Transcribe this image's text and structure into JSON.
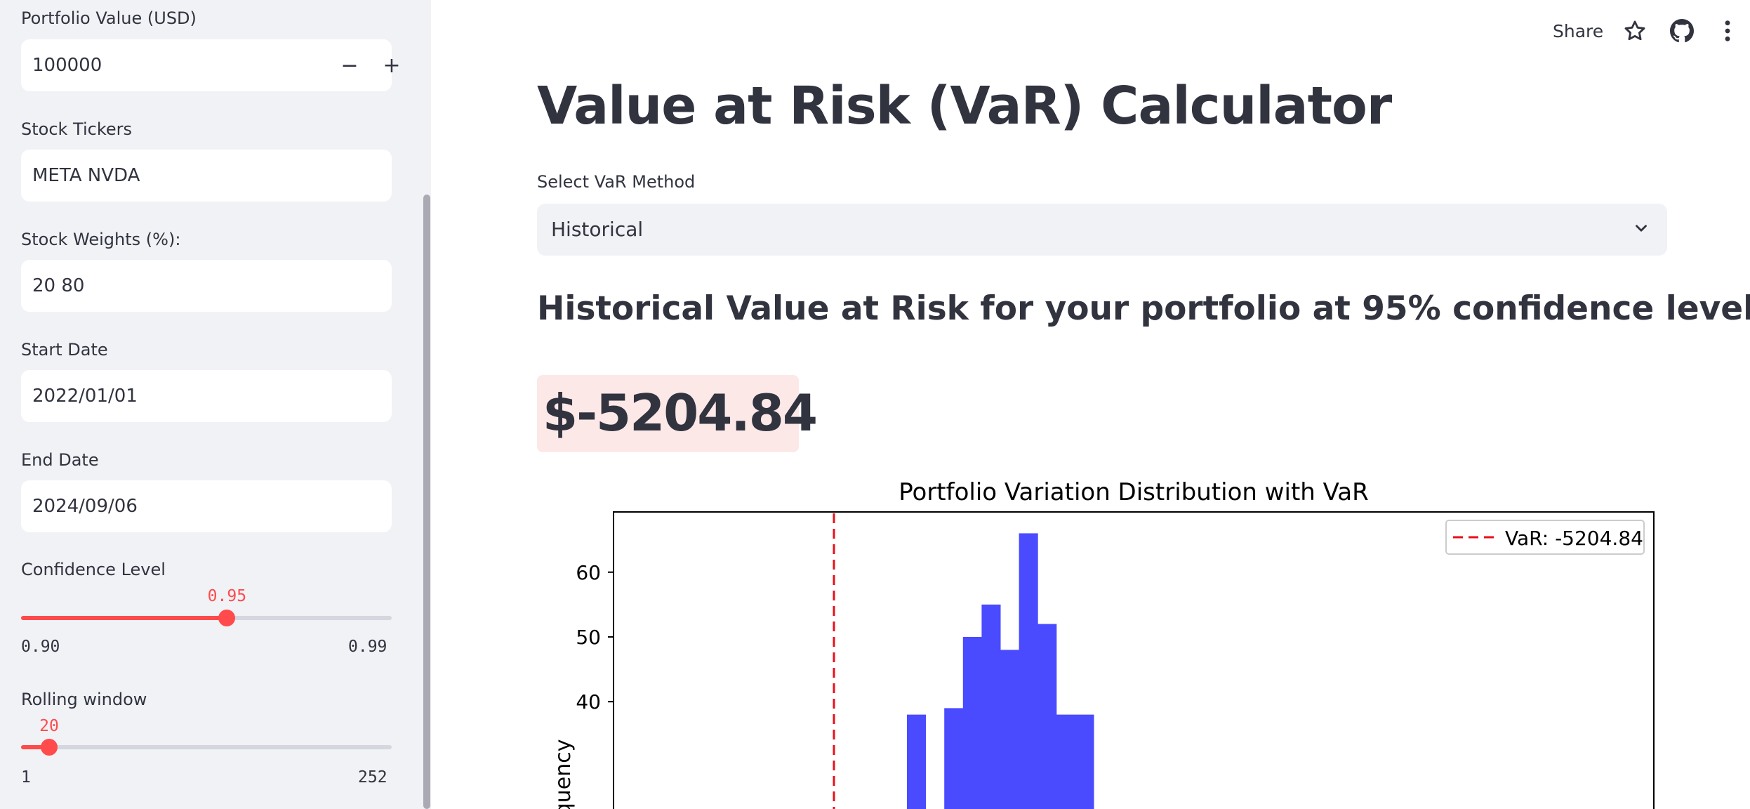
{
  "sidebar": {
    "portfolio_value_label": "Portfolio Value (USD)",
    "portfolio_value": "100000",
    "decrement": "−",
    "increment": "+",
    "tickers_label": "Stock Tickers",
    "tickers_value": "META NVDA",
    "weights_label": "Stock Weights (%):",
    "weights_value": "20 80",
    "start_date_label": "Start Date",
    "start_date_value": "2022/01/01",
    "end_date_label": "End Date",
    "end_date_value": "2024/09/06",
    "confidence": {
      "label": "Confidence Level",
      "value": "0.95",
      "min": "0.90",
      "max": "0.99",
      "fraction": 0.5556
    },
    "rolling": {
      "label": "Rolling window",
      "value": "20",
      "min": "1",
      "max": "252",
      "fraction": 0.0757
    }
  },
  "toolbar": {
    "share_label": "Share",
    "icons": [
      "star-icon",
      "github-icon",
      "more-vertical-icon"
    ]
  },
  "main": {
    "title": "Value at Risk (VaR) Calculator",
    "select_label": "Select VaR Method",
    "select_value": "Historical",
    "subheading": "Historical Value at Risk for your portfolio at 95% confidence level:",
    "var_value": "$-5204.84"
  },
  "colors": {
    "accent": "#ff4b4b",
    "bar": "#4a4aff",
    "var_line": "#e8101a",
    "sidebar_bg": "#f0f2f6"
  },
  "chart_data": {
    "type": "bar",
    "title": "Portfolio Variation Distribution with VaR",
    "ylabel": "Frequency",
    "legend": "VaR: -5204.84",
    "legend_position": "top-right",
    "var_value": -5204.84,
    "yticks": [
      "40",
      "50",
      "60"
    ],
    "ylim": [
      0,
      69.3
    ],
    "bins": [
      {
        "x": 0,
        "value": 38
      },
      {
        "x": 1,
        "value": 0
      },
      {
        "x": 2,
        "value": 39
      },
      {
        "x": 3,
        "value": 50
      },
      {
        "x": 4,
        "value": 55
      },
      {
        "x": 5,
        "value": 48
      },
      {
        "x": 6,
        "value": 66
      },
      {
        "x": 7,
        "value": 52
      },
      {
        "x": 8,
        "value": 38
      },
      {
        "x": 9,
        "value": 38
      }
    ]
  }
}
